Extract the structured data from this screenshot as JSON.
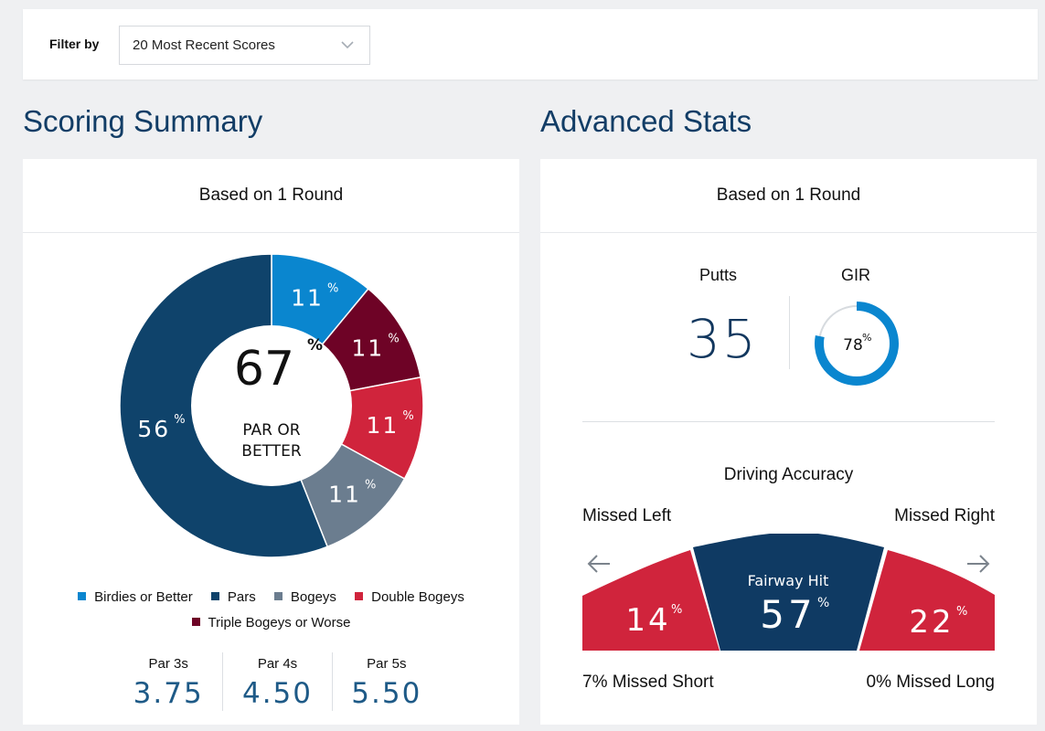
{
  "filter": {
    "label": "Filter by",
    "selected": "20 Most Recent Scores"
  },
  "scoring": {
    "title": "Scoring Summary",
    "header": "Based on 1 Round",
    "center_value": "67",
    "center_unit": "%",
    "center_label_line1": "PAR OR",
    "center_label_line2": "BETTER"
  },
  "legend": [
    {
      "name": "Birdies or Better",
      "color": "#0a86cf"
    },
    {
      "name": "Pars",
      "color": "#0f436b"
    },
    {
      "name": "Bogeys",
      "color": "#6b7d8f"
    },
    {
      "name": "Double Bogeys",
      "color": "#d0243c"
    },
    {
      "name": "Triple Bogeys or Worse",
      "color": "#6e0326"
    }
  ],
  "chart_data": {
    "type": "pie",
    "unit": "%",
    "slices": [
      {
        "category": "Birdies or Better",
        "value": 11,
        "color": "#0a86cf"
      },
      {
        "category": "Triple Bogeys or Worse",
        "value": 11,
        "color": "#6e0326"
      },
      {
        "category": "Double Bogeys",
        "value": 11,
        "color": "#d0243c"
      },
      {
        "category": "Bogeys",
        "value": 11,
        "color": "#6b7d8f"
      },
      {
        "category": "Pars",
        "value": 56,
        "color": "#0f436b"
      }
    ]
  },
  "pars": [
    {
      "label": "Par 3s",
      "value": "3.75"
    },
    {
      "label": "Par 4s",
      "value": "4.50"
    },
    {
      "label": "Par 5s",
      "value": "5.50"
    }
  ],
  "advanced": {
    "title": "Advanced Stats",
    "header": "Based on 1 Round",
    "putts_label": "Putts",
    "putts_value": "35",
    "gir_label": "GIR",
    "gir_value": "78",
    "gir_unit": "%",
    "gir_percent": 78
  },
  "driving": {
    "title": "Driving Accuracy",
    "missed_left_label": "Missed Left",
    "missed_right_label": "Missed Right",
    "fairway_label": "Fairway Hit",
    "left_value": "14",
    "fairway_value": "57",
    "right_value": "22",
    "unit": "%",
    "missed_short": "7% Missed Short",
    "missed_long": "0% Missed Long"
  },
  "colors": {
    "navy": "#0f3a63",
    "red": "#d0243c",
    "blue": "#0a86cf",
    "title_blue": "#123d66"
  }
}
